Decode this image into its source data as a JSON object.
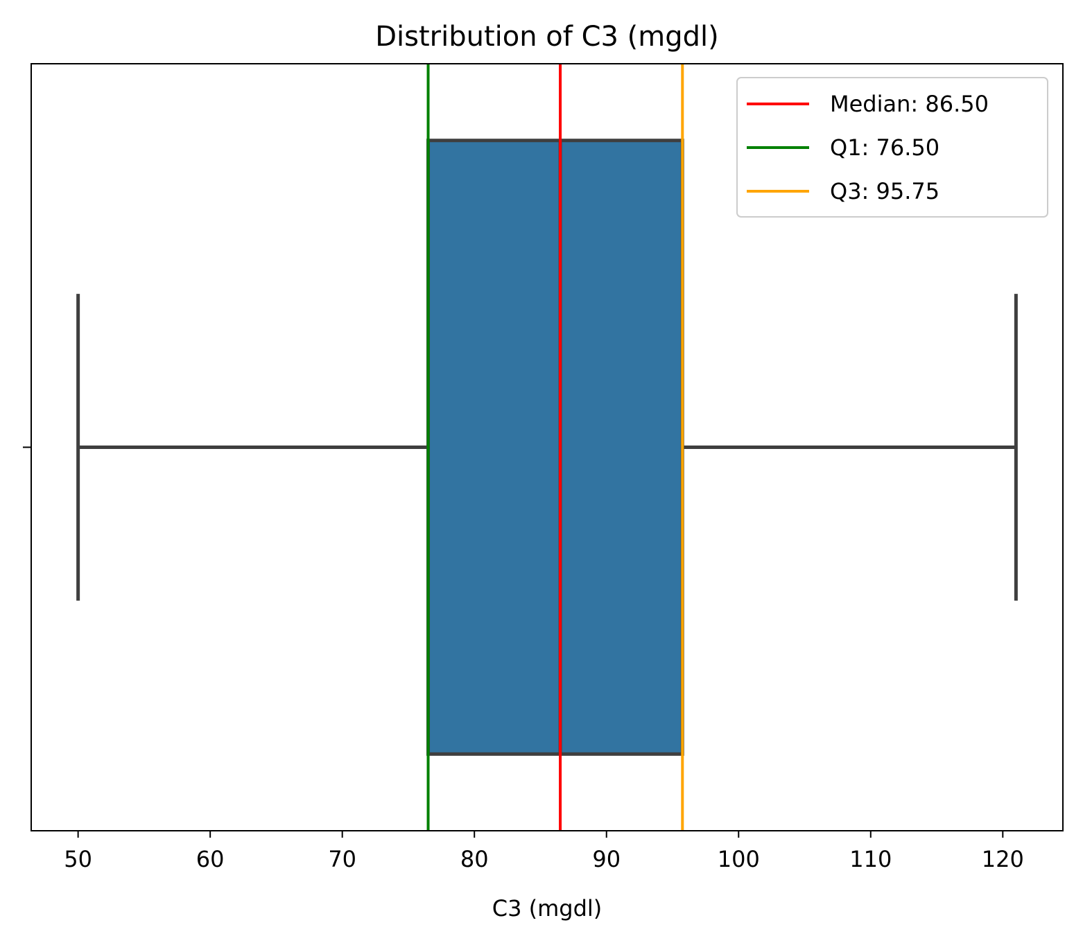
{
  "chart_data": {
    "type": "boxplot",
    "orientation": "horizontal",
    "title": "Distribution of C3 (mgdl)",
    "xlabel": "C3 (mgdl)",
    "ylabel": "",
    "xlim": [
      46.45,
      124.55
    ],
    "xticks": [
      50,
      60,
      70,
      80,
      90,
      100,
      110,
      120
    ],
    "xtick_labels": [
      "50",
      "60",
      "70",
      "80",
      "90",
      "100",
      "110",
      "120"
    ],
    "grid": false,
    "box": {
      "whisker_low": 50,
      "q1": 76.5,
      "median": 86.5,
      "q3": 95.75,
      "whisker_high": 121,
      "fill_color": "#3274a1",
      "line_color": "#3f3f3f"
    },
    "reference_lines": [
      {
        "name": "Median",
        "value": 86.5,
        "label": "Median: 86.50",
        "color": "#ff0000"
      },
      {
        "name": "Q1",
        "value": 76.5,
        "label": "Q1: 76.50",
        "color": "#008000"
      },
      {
        "name": "Q3",
        "value": 95.75,
        "label": "Q3: 95.75",
        "color": "#ffa500"
      }
    ],
    "legend_position": "top-right"
  }
}
